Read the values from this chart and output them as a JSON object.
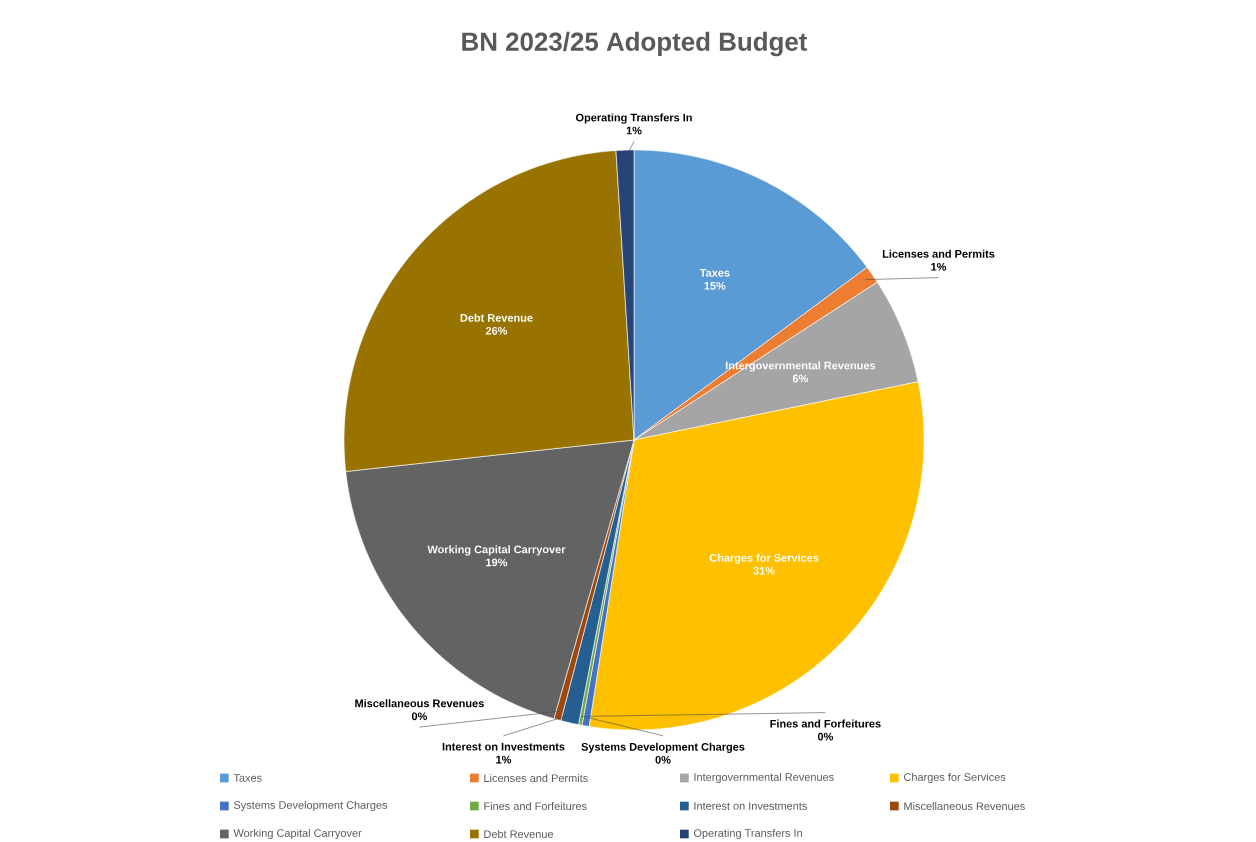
{
  "chart_data": {
    "type": "pie",
    "title": "BN 2023/25 Adopted Budget",
    "categories": [
      "Taxes",
      "Licenses and Permits",
      "Intergovernmental Revenues",
      "Charges for Services",
      "Systems Development Charges",
      "Fines and Forfeitures",
      "Interest on Investments",
      "Miscellaneous Revenues",
      "Working Capital Carryover",
      "Debt Revenue",
      "Operating Transfers In"
    ],
    "values": [
      15,
      1,
      6,
      31,
      0.4,
      0.2,
      1,
      0.4,
      19,
      26,
      1
    ],
    "value_labels": [
      "15%",
      "1%",
      "6%",
      "31%",
      "0%",
      "0%",
      "1%",
      "0%",
      "19%",
      "26%",
      "1%"
    ],
    "colors": [
      "#5b9bd5",
      "#ed7d31",
      "#a5a5a5",
      "#ffc000",
      "#4472c4",
      "#70ad47",
      "#255e91",
      "#9e480e",
      "#636363",
      "#997300",
      "#264478"
    ],
    "legend": "bottom"
  }
}
